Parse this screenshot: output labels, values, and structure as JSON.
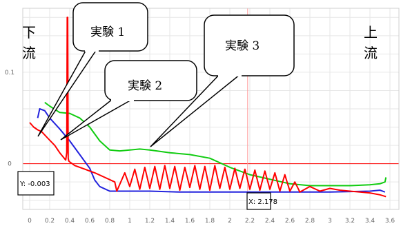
{
  "chart_data": {
    "type": "line",
    "title": "",
    "xlabel": "",
    "ylabel": "",
    "xlim": [
      0,
      3.6
    ],
    "ylim": [
      -0.05,
      0.17
    ],
    "x_ticks": [
      "0",
      "0.2",
      "0.4",
      "0.6",
      "0.8",
      "1",
      "1.2",
      "1.4",
      "1.6",
      "1.8",
      "2",
      "2.2",
      "2.4",
      "2.6",
      "2.8",
      "3",
      "3.2",
      "3.4",
      "3.6"
    ],
    "y_ticks": [
      {
        "value": 0,
        "label": "0"
      },
      {
        "value": 0.1,
        "label": "0.1"
      }
    ],
    "grid": true,
    "colors": {
      "series_red": "#ff0000",
      "series_blue": "#2222dd",
      "series_green": "#11cc11",
      "cursor": "#ff9999",
      "grid": "#e6e6e6"
    },
    "series": [
      {
        "color": "#2222dd",
        "x": [
          0.08,
          0.1,
          0.15,
          0.2,
          0.3,
          0.4,
          0.5,
          0.6,
          0.65,
          0.7,
          0.8,
          1.0,
          1.2,
          1.5,
          2.0,
          2.5,
          3.0,
          3.4,
          3.5,
          3.55
        ],
        "y": [
          0.05,
          0.06,
          0.058,
          0.05,
          0.038,
          0.025,
          0.01,
          -0.005,
          -0.018,
          -0.025,
          -0.03,
          -0.03,
          -0.03,
          -0.031,
          -0.031,
          -0.031,
          -0.031,
          -0.03,
          -0.029,
          -0.031
        ]
      },
      {
        "color": "#11cc11",
        "x": [
          0.15,
          0.2,
          0.3,
          0.4,
          0.5,
          0.6,
          0.7,
          0.8,
          0.9,
          1.0,
          1.1,
          1.2,
          1.4,
          1.6,
          1.8,
          2.0,
          2.2,
          2.4,
          2.6,
          2.8,
          3.0,
          3.2,
          3.4,
          3.5,
          3.55,
          3.56
        ],
        "y": [
          0.067,
          0.063,
          0.056,
          0.055,
          0.05,
          0.04,
          0.025,
          0.015,
          0.014,
          0.015,
          0.016,
          0.015,
          0.012,
          0.01,
          0.006,
          -0.004,
          -0.012,
          -0.017,
          -0.022,
          -0.024,
          -0.024,
          -0.024,
          -0.023,
          -0.022,
          -0.02,
          -0.015
        ]
      },
      {
        "color": "#ff0000",
        "x": [
          0.0,
          0.04,
          0.08,
          0.12,
          0.18,
          0.25,
          0.3,
          0.33,
          0.36,
          0.37,
          0.375,
          0.38,
          0.385,
          0.39,
          0.4,
          0.45,
          0.55,
          0.65,
          0.75,
          0.85,
          0.87,
          0.95,
          1.0,
          1.05,
          1.1,
          1.15,
          1.2,
          1.25,
          1.3,
          1.35,
          1.4,
          1.45,
          1.5,
          1.55,
          1.6,
          1.65,
          1.7,
          1.75,
          1.8,
          1.85,
          1.9,
          1.95,
          2.0,
          2.05,
          2.1,
          2.15,
          2.2,
          2.25,
          2.3,
          2.35,
          2.4,
          2.45,
          2.5,
          2.55,
          2.6,
          2.65,
          2.7,
          2.8,
          2.9,
          3.0,
          3.1,
          3.2,
          3.3,
          3.4,
          3.5,
          3.56
        ],
        "y": [
          0.045,
          0.04,
          0.037,
          0.035,
          0.028,
          0.02,
          0.012,
          0.008,
          0.004,
          0.012,
          0.16,
          0.16,
          0.006,
          0.003,
          0.002,
          -0.002,
          -0.006,
          -0.01,
          -0.015,
          -0.02,
          -0.03,
          -0.01,
          -0.025,
          -0.006,
          -0.028,
          -0.004,
          -0.027,
          -0.003,
          -0.028,
          -0.002,
          -0.027,
          -0.003,
          -0.029,
          -0.004,
          -0.026,
          -0.002,
          -0.028,
          -0.003,
          -0.029,
          -0.002,
          -0.027,
          -0.004,
          -0.028,
          -0.005,
          -0.027,
          -0.006,
          -0.028,
          -0.007,
          -0.029,
          -0.008,
          -0.028,
          -0.01,
          -0.03,
          -0.012,
          -0.03,
          -0.02,
          -0.031,
          -0.025,
          -0.03,
          -0.027,
          -0.029,
          -0.03,
          -0.031,
          -0.032,
          -0.034,
          -0.036
        ]
      }
    ],
    "zero_line": 0,
    "cursor_x": 2.178,
    "cursor_y": -0.003
  },
  "callouts": [
    {
      "text": "実験 1"
    },
    {
      "text": "実験 2"
    },
    {
      "text": "実験 3"
    }
  ],
  "labels": {
    "left_top": "下",
    "left_bottom": "流",
    "right_top": "上",
    "right_bottom": "流"
  },
  "readouts": {
    "y": "Y: -0.003",
    "x": "X: 2.178"
  }
}
